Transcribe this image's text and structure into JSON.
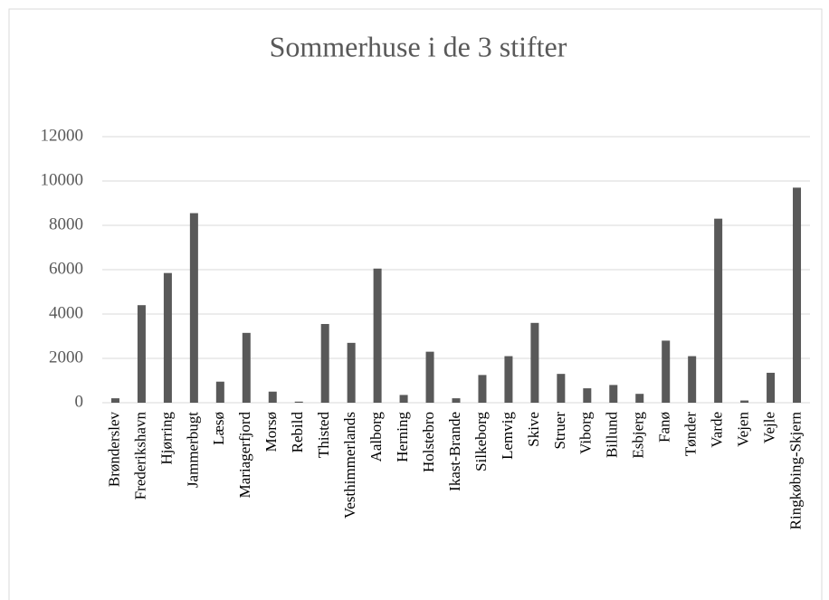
{
  "chart_data": {
    "type": "bar",
    "title": "Sommerhuse i de 3 stifter",
    "categories": [
      "Brønderslev",
      "Frederikshavn",
      "Hjørring",
      "Jammerbugt",
      "Læsø",
      "Mariagerfjord",
      "Morsø",
      "Rebild",
      "Thisted",
      "Vesthimmerlands",
      "Aalborg",
      "Herning",
      "Holstebro",
      "Ikast-Brande",
      "Silkeborg",
      "Lemvig",
      "Skive",
      "Struer",
      "Viborg",
      "Billund",
      "Esbjerg",
      "Fanø",
      "Tønder",
      "Varde",
      "Vejen",
      "Vejle",
      "Ringkøbing-Skjern"
    ],
    "values": [
      200,
      4400,
      5850,
      8550,
      950,
      3150,
      500,
      50,
      3550,
      2700,
      6050,
      350,
      2300,
      200,
      1250,
      2100,
      3600,
      1300,
      650,
      800,
      400,
      2800,
      2100,
      8300,
      100,
      1350,
      9700
    ],
    "color": "#595959",
    "ylim": [
      0,
      12000
    ],
    "yticks": [
      0,
      2000,
      4000,
      6000,
      8000,
      10000,
      12000
    ],
    "grid": true
  }
}
